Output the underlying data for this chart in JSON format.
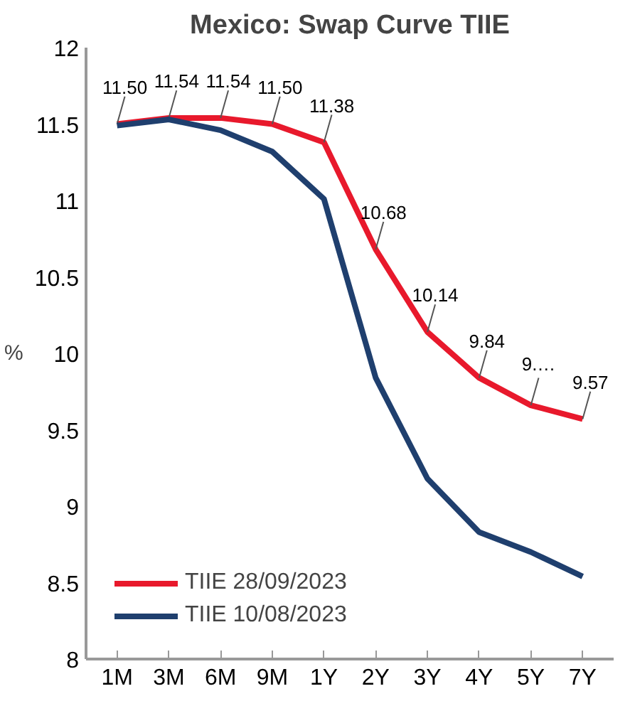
{
  "chart_data": {
    "type": "line",
    "title": "Mexico: Swap Curve TIIE",
    "ylabel": "%",
    "categories": [
      "1M",
      "3M",
      "6M",
      "9M",
      "1Y",
      "2Y",
      "3Y",
      "4Y",
      "5Y",
      "7Y"
    ],
    "series": [
      {
        "name": "TIIE 28/09/2023",
        "color": "#e8192c",
        "values": [
          11.5,
          11.54,
          11.54,
          11.5,
          11.38,
          10.68,
          10.14,
          9.84,
          9.66,
          9.57
        ],
        "value_labels": [
          "11.50",
          "11.54",
          "11.54",
          "11.50",
          "11.38",
          "10.68",
          "10.14",
          "9.84",
          "9.…",
          "9.57"
        ]
      },
      {
        "name": "TIIE 10/08/2023",
        "color": "#1f3f6e",
        "values": [
          11.49,
          11.53,
          11.46,
          11.32,
          11.01,
          9.84,
          9.18,
          8.83,
          8.7,
          8.54
        ]
      }
    ],
    "ylim": [
      8,
      12
    ],
    "yticks": [
      8,
      8.5,
      9,
      9.5,
      10,
      10.5,
      11,
      11.5,
      12
    ],
    "legend": "bottom left",
    "grid": false,
    "marker": "none",
    "line_style": "solid"
  }
}
